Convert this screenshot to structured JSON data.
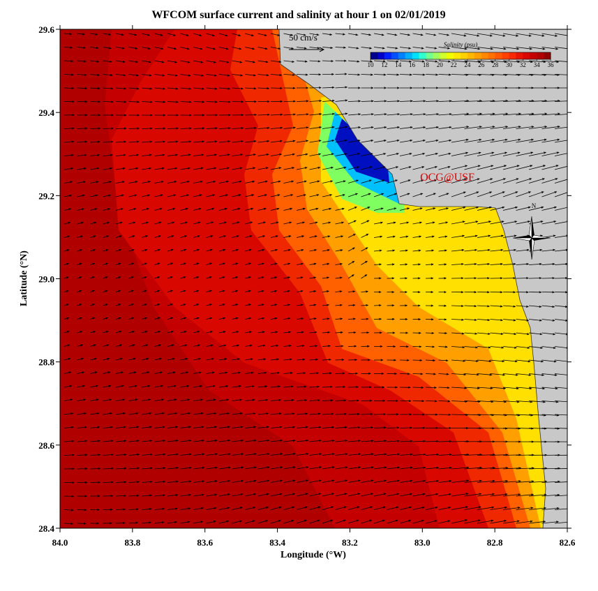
{
  "title": "WFCOM surface current and salinity at hour 1 on 02/01/2019",
  "x_axis": {
    "label": "Longitude (°W)",
    "range": [
      84.0,
      82.6
    ],
    "ticks": [
      {
        "value": 84.0,
        "label": "84.0"
      },
      {
        "value": 83.8,
        "label": "83.8"
      },
      {
        "value": 83.6,
        "label": "83.6"
      },
      {
        "value": 83.4,
        "label": "83.4"
      },
      {
        "value": 83.2,
        "label": "83.2"
      },
      {
        "value": 83.0,
        "label": "83.0"
      },
      {
        "value": 82.8,
        "label": "82.8"
      },
      {
        "value": 82.6,
        "label": "82.6"
      }
    ]
  },
  "y_axis": {
    "label": "Latitude (°N)",
    "range": [
      28.4,
      29.6
    ],
    "ticks": [
      {
        "value": 28.4,
        "label": "28.4"
      },
      {
        "value": 28.6,
        "label": "28.6"
      },
      {
        "value": 28.8,
        "label": "28.8"
      },
      {
        "value": 29.0,
        "label": "29.0"
      },
      {
        "value": 29.2,
        "label": "29.2"
      },
      {
        "value": 29.4,
        "label": "29.4"
      },
      {
        "value": 29.6,
        "label": "29.6"
      }
    ]
  },
  "colorbar": {
    "title": "Salinity (psu)",
    "range": [
      10,
      36
    ],
    "ticks": [
      10,
      12,
      14,
      16,
      18,
      20,
      22,
      24,
      26,
      28,
      30,
      32,
      34,
      36
    ],
    "colors": [
      "#00008c",
      "#0000c8",
      "#0020ff",
      "#0050ff",
      "#0080ff",
      "#00b0ff",
      "#00e0ff",
      "#30ffd0",
      "#70ff90",
      "#a0ff60",
      "#d0ff30",
      "#f0ff00",
      "#ffe800",
      "#ffd000",
      "#ffb800",
      "#ffa000",
      "#ff8800",
      "#ff7000",
      "#ff5800",
      "#ff4000",
      "#f82800",
      "#e81400",
      "#d80800",
      "#c40000",
      "#b00000",
      "#900000"
    ]
  },
  "scale_arrow": "50 cm/s",
  "watermark": "OCG@USF",
  "compass": "N"
}
